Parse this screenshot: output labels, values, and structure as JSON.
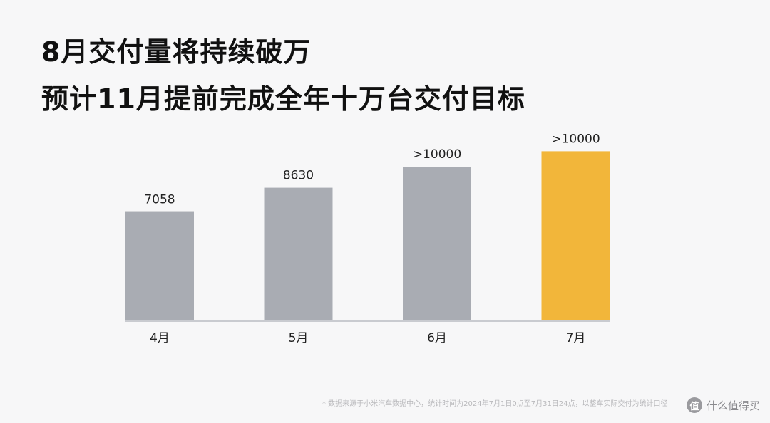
{
  "slide": {
    "title_line1": "8月交付量将持续破万",
    "title_line2": "预计11月提前完成全年十万台交付目标",
    "footnote": "* 数据来源于小米汽车数据中心，统计时间为2024年7月1日0点至7月31日24点，以整车实际交付为统计口径",
    "watermark_text": "什么值得买",
    "watermark_logo": "值"
  },
  "chart_data": {
    "type": "bar",
    "categories": [
      "4月",
      "5月",
      "6月",
      "7月"
    ],
    "values": [
      7058,
      8630,
      10000,
      11000
    ],
    "labels": [
      "7058",
      "8630",
      ">10000",
      ">10000"
    ],
    "colors": [
      "#a9acb3",
      "#a9acb3",
      "#a9acb3",
      "#f2b63a"
    ],
    "ylim": [
      0,
      12500
    ],
    "grid": false,
    "legend": "none"
  }
}
